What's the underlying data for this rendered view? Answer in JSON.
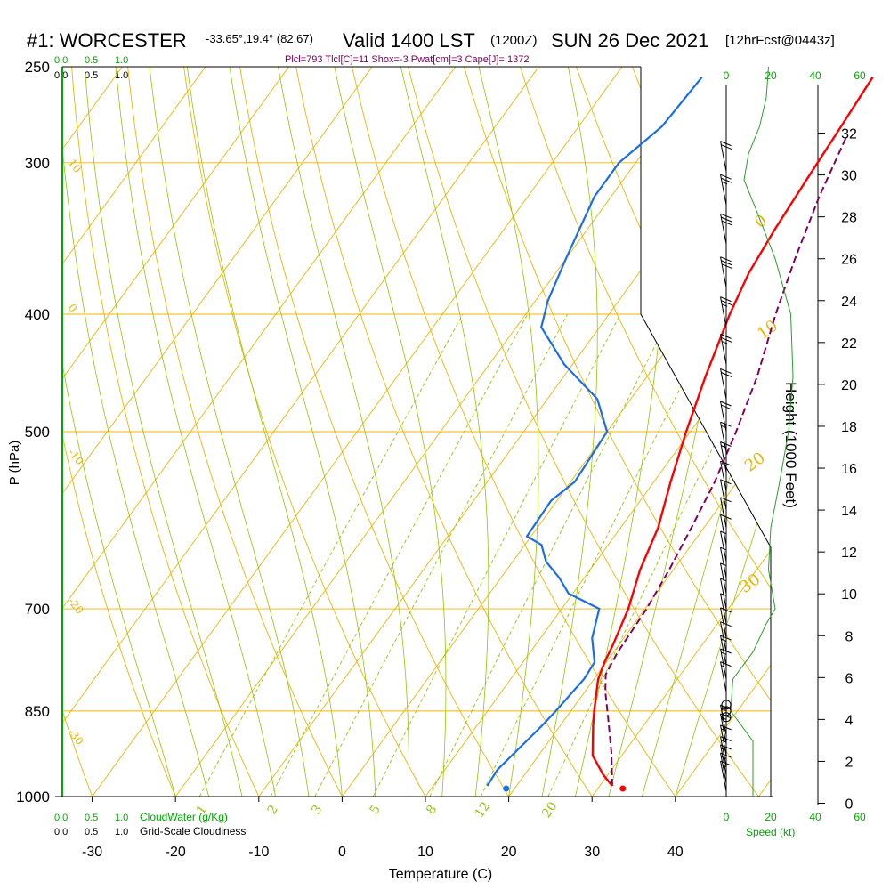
{
  "header": {
    "station": "#1: WORCESTER",
    "coords": "-33.65°,19.4° (82,67)",
    "valid": "Valid 1400 LST",
    "utc": "(1200Z)",
    "date": "SUN 26 Dec 2021",
    "forecast": "[12hrFcst@0443z]",
    "indices": "Plcl=793 Tlcl[C]=11 Shox=-3 Pwat[cm]=3 Cape[J]= 1372"
  },
  "colors": {
    "temperature": "#ff0000",
    "dewpoint": "#1a6ee6",
    "parcel": "#800060",
    "isotherm": "#f0b400",
    "dry_adiabat": "#f0b400",
    "moist_adiabat": "#90c800",
    "mixing_ratio": "#90c800",
    "cloud_scale": "#00aa00"
  },
  "chart_data": {
    "type": "skew-t",
    "xlabel": "Temperature (C)",
    "ylabel": "P (hPa)",
    "y2label": "Height (1000 Feet)",
    "x_ticks": [
      -30,
      -20,
      -10,
      0,
      10,
      20,
      30,
      40
    ],
    "xlim": [
      -30,
      45
    ],
    "p_ticks": [
      250,
      300,
      400,
      500,
      700,
      850,
      1000
    ],
    "plim": [
      250,
      1000
    ],
    "log_pressure": true,
    "height_ticks": [
      0,
      2,
      4,
      6,
      8,
      10,
      12,
      14,
      16,
      18,
      20,
      22,
      24,
      26,
      28,
      30,
      32
    ],
    "isotherm_labels": [
      {
        "t": 0,
        "text": "0",
        "p": 340
      },
      {
        "t": 10,
        "text": "10",
        "p": 420
      },
      {
        "t": 20,
        "text": "20",
        "p": 540
      },
      {
        "t": 30,
        "text": "30",
        "p": 680
      }
    ],
    "left_edge_labels": [
      {
        "text": "10",
        "p": 300
      },
      {
        "text": "0",
        "p": 395
      },
      {
        "text": "-10",
        "p": 520
      },
      {
        "text": "-20",
        "p": 690
      },
      {
        "text": "-30",
        "p": 885
      }
    ],
    "mixing_ratio_labels": [
      "1",
      "2",
      "3",
      "5",
      "8",
      "12",
      "20"
    ],
    "mixing_ratio_values": [
      1,
      2,
      3,
      5,
      8,
      12,
      20
    ],
    "temperature_profile": [
      {
        "p": 980,
        "t": 31.5
      },
      {
        "p": 960,
        "t": 29.5
      },
      {
        "p": 925,
        "t": 26.5
      },
      {
        "p": 875,
        "t": 24.0
      },
      {
        "p": 850,
        "t": 22.8
      },
      {
        "p": 800,
        "t": 20.5
      },
      {
        "p": 775,
        "t": 19.8
      },
      {
        "p": 750,
        "t": 19.3
      },
      {
        "p": 700,
        "t": 18.0
      },
      {
        "p": 650,
        "t": 16.0
      },
      {
        "p": 600,
        "t": 14.5
      },
      {
        "p": 550,
        "t": 12.0
      },
      {
        "p": 500,
        "t": 9.5
      },
      {
        "p": 450,
        "t": 7.0
      },
      {
        "p": 400,
        "t": 4.5
      },
      {
        "p": 370,
        "t": 3.2
      },
      {
        "p": 340,
        "t": 2.5
      },
      {
        "p": 310,
        "t": 2.0
      },
      {
        "p": 280,
        "t": 1.5
      },
      {
        "p": 255,
        "t": 1.0
      }
    ],
    "dewpoint_profile": [
      {
        "p": 980,
        "t": 16.5
      },
      {
        "p": 950,
        "t": 16.3
      },
      {
        "p": 925,
        "t": 16.8
      },
      {
        "p": 875,
        "t": 17.8
      },
      {
        "p": 850,
        "t": 18.2
      },
      {
        "p": 800,
        "t": 18.8
      },
      {
        "p": 775,
        "t": 18.6
      },
      {
        "p": 740,
        "t": 16.2
      },
      {
        "p": 700,
        "t": 14.5
      },
      {
        "p": 680,
        "t": 9.5
      },
      {
        "p": 660,
        "t": 7.0
      },
      {
        "p": 640,
        "t": 4.0
      },
      {
        "p": 620,
        "t": 2.0
      },
      {
        "p": 610,
        "t": -0.5
      },
      {
        "p": 570,
        "t": -0.7
      },
      {
        "p": 550,
        "t": 0.5
      },
      {
        "p": 500,
        "t": 0.0
      },
      {
        "p": 470,
        "t": -4.0
      },
      {
        "p": 440,
        "t": -11.0
      },
      {
        "p": 410,
        "t": -17.0
      },
      {
        "p": 390,
        "t": -18.5
      },
      {
        "p": 360,
        "t": -20.0
      },
      {
        "p": 320,
        "t": -22.0
      },
      {
        "p": 300,
        "t": -22.0
      },
      {
        "p": 280,
        "t": -20.0
      },
      {
        "p": 255,
        "t": -19.5
      }
    ],
    "parcel_profile": [
      {
        "p": 980,
        "t": 31.5
      },
      {
        "p": 920,
        "t": 28.5
      },
      {
        "p": 860,
        "t": 25.0
      },
      {
        "p": 820,
        "t": 22.5
      },
      {
        "p": 793,
        "t": 21.0
      },
      {
        "p": 760,
        "t": 20.5
      },
      {
        "p": 700,
        "t": 20.2
      },
      {
        "p": 650,
        "t": 19.5
      },
      {
        "p": 600,
        "t": 18.5
      },
      {
        "p": 550,
        "t": 17.3
      },
      {
        "p": 500,
        "t": 15.5
      },
      {
        "p": 450,
        "t": 13.2
      },
      {
        "p": 400,
        "t": 10.0
      },
      {
        "p": 360,
        "t": 7.5
      },
      {
        "p": 320,
        "t": 5.0
      },
      {
        "p": 285,
        "t": 3.0
      }
    ],
    "surface_temperature": 33,
    "surface_dewpoint": 19,
    "wind_barbs": [
      {
        "p": 990,
        "spd": 15
      },
      {
        "p": 975,
        "spd": 15
      },
      {
        "p": 960,
        "spd": 15
      },
      {
        "p": 945,
        "spd": 15
      },
      {
        "p": 925,
        "spd": 15
      },
      {
        "p": 905,
        "spd": 15
      },
      {
        "p": 890,
        "spd": 15
      },
      {
        "p": 820,
        "spd": 15
      },
      {
        "p": 800,
        "spd": 15
      },
      {
        "p": 780,
        "spd": 15
      },
      {
        "p": 760,
        "spd": 10
      },
      {
        "p": 740,
        "spd": 10
      },
      {
        "p": 720,
        "spd": 5
      },
      {
        "p": 700,
        "spd": 5
      },
      {
        "p": 680,
        "spd": 5
      },
      {
        "p": 660,
        "spd": 5
      },
      {
        "p": 640,
        "spd": 5
      },
      {
        "p": 620,
        "spd": 10
      },
      {
        "p": 600,
        "spd": 10
      },
      {
        "p": 580,
        "spd": 10
      },
      {
        "p": 560,
        "spd": 10
      },
      {
        "p": 540,
        "spd": 15
      },
      {
        "p": 520,
        "spd": 15
      },
      {
        "p": 500,
        "spd": 20
      },
      {
        "p": 470,
        "spd": 20
      },
      {
        "p": 440,
        "spd": 25
      },
      {
        "p": 410,
        "spd": 25
      },
      {
        "p": 380,
        "spd": 30
      },
      {
        "p": 350,
        "spd": 30
      },
      {
        "p": 325,
        "spd": 25
      },
      {
        "p": 305,
        "spd": 20
      }
    ],
    "calm_markers": [
      {
        "p": 850
      },
      {
        "p": 860
      },
      {
        "p": 840
      }
    ],
    "wind_speed_scale": {
      "ticks": [
        0,
        20,
        40,
        60
      ],
      "label": "Speed (kt)"
    },
    "wind_speed_profile": [
      {
        "p": 1000,
        "spd": 12
      },
      {
        "p": 900,
        "spd": 12
      },
      {
        "p": 850,
        "spd": 2
      },
      {
        "p": 800,
        "spd": 3
      },
      {
        "p": 760,
        "spd": 12
      },
      {
        "p": 720,
        "spd": 18
      },
      {
        "p": 700,
        "spd": 22
      },
      {
        "p": 650,
        "spd": 19
      },
      {
        "p": 600,
        "spd": 20
      },
      {
        "p": 550,
        "spd": 24
      },
      {
        "p": 500,
        "spd": 28
      },
      {
        "p": 450,
        "spd": 30
      },
      {
        "p": 400,
        "spd": 29
      },
      {
        "p": 360,
        "spd": 22
      },
      {
        "p": 330,
        "spd": 14
      },
      {
        "p": 310,
        "spd": 8
      },
      {
        "p": 295,
        "spd": 10
      },
      {
        "p": 280,
        "spd": 15
      },
      {
        "p": 265,
        "spd": 18
      },
      {
        "p": 250,
        "spd": 19
      }
    ],
    "cloud_scale": {
      "ticks": [
        "0.0",
        "0.5",
        "1.0"
      ],
      "cloudwater_label": "CloudWater (g/Kg)",
      "cloudiness_label": "Grid-Scale Cloudiness"
    }
  }
}
